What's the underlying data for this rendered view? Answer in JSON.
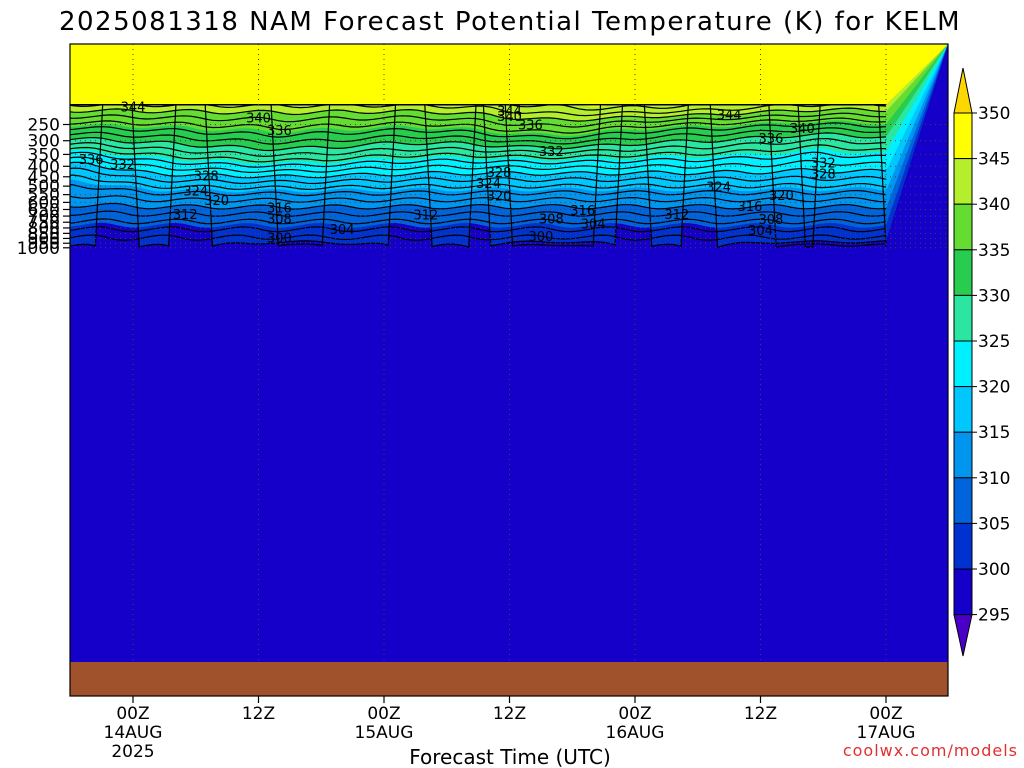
{
  "chart_data": {
    "type": "contour",
    "title": "2025081318 NAM Forecast Potential Temperature (K) for KELM",
    "xlabel": "Forecast Time (UTC)",
    "ylabel": "",
    "credit": "coolwx.com/models",
    "y_axis": {
      "ticks": [
        250,
        300,
        350,
        400,
        450,
        500,
        550,
        600,
        650,
        700,
        750,
        800,
        850,
        900,
        950,
        1000
      ],
      "range": [
        200,
        1025
      ],
      "scale": "log-pressure",
      "inverted": true
    },
    "x_axis": {
      "range_hours": [
        -6,
        78
      ],
      "ticks": [
        {
          "hour": 6,
          "line1": "00Z",
          "line2": "14AUG",
          "line3": "2025"
        },
        {
          "hour": 18,
          "line1": "12Z",
          "line2": "",
          "line3": ""
        },
        {
          "hour": 30,
          "line1": "00Z",
          "line2": "15AUG",
          "line3": ""
        },
        {
          "hour": 42,
          "line1": "12Z",
          "line2": "",
          "line3": ""
        },
        {
          "hour": 54,
          "line1": "00Z",
          "line2": "16AUG",
          "line3": ""
        },
        {
          "hour": 66,
          "line1": "12Z",
          "line2": "",
          "line3": ""
        },
        {
          "hour": 78,
          "line1": "00Z",
          "line2": "17AUG",
          "line3": ""
        }
      ]
    },
    "colorbar": {
      "levels": [
        350,
        345,
        340,
        335,
        330,
        325,
        320,
        315,
        310,
        305,
        300,
        295
      ],
      "colors": [
        "#ffd700",
        "#ffff00",
        "#b4ee2c",
        "#64dc32",
        "#28cd50",
        "#2ae6a0",
        "#00f0ff",
        "#00c8ff",
        "#0096f0",
        "#0064dc",
        "#0032d2",
        "#1400c8",
        "#4b00c8"
      ]
    },
    "surface_color": "#a0522d",
    "isentropes": [
      {
        "theta": 344,
        "labels": [
          {
            "hour": 6,
            "p": 205
          },
          {
            "hour": 42,
            "p": 215
          },
          {
            "hour": 63,
            "p": 225
          }
        ]
      },
      {
        "theta": 340,
        "labels": [
          {
            "hour": 18,
            "p": 232
          },
          {
            "hour": 42,
            "p": 228
          },
          {
            "hour": 70,
            "p": 262
          }
        ]
      },
      {
        "theta": 336,
        "labels": [
          {
            "hour": 2,
            "p": 370
          },
          {
            "hour": 20,
            "p": 268
          },
          {
            "hour": 44,
            "p": 252
          },
          {
            "hour": 67,
            "p": 292
          }
        ]
      },
      {
        "theta": 332,
        "labels": [
          {
            "hour": 5,
            "p": 393
          },
          {
            "hour": 46,
            "p": 338
          },
          {
            "hour": 72,
            "p": 385
          }
        ]
      },
      {
        "theta": 328,
        "labels": [
          {
            "hour": 13,
            "p": 447
          },
          {
            "hour": 41,
            "p": 428
          },
          {
            "hour": 72,
            "p": 436
          }
        ]
      },
      {
        "theta": 324,
        "labels": [
          {
            "hour": 12,
            "p": 528
          },
          {
            "hour": 40,
            "p": 486
          },
          {
            "hour": 62,
            "p": 505
          }
        ]
      },
      {
        "theta": 320,
        "labels": [
          {
            "hour": 14,
            "p": 587
          },
          {
            "hour": 41,
            "p": 560
          },
          {
            "hour": 68,
            "p": 556
          }
        ]
      },
      {
        "theta": 316,
        "labels": [
          {
            "hour": 20,
            "p": 640
          },
          {
            "hour": 49,
            "p": 658
          },
          {
            "hour": 65,
            "p": 629
          }
        ]
      },
      {
        "theta": 312,
        "labels": [
          {
            "hour": 11,
            "p": 688
          },
          {
            "hour": 34,
            "p": 690
          },
          {
            "hour": 58,
            "p": 687
          }
        ]
      },
      {
        "theta": 308,
        "labels": [
          {
            "hour": 20,
            "p": 725
          },
          {
            "hour": 46,
            "p": 723
          },
          {
            "hour": 67,
            "p": 726
          }
        ]
      },
      {
        "theta": 304,
        "labels": [
          {
            "hour": 26,
            "p": 816
          },
          {
            "hour": 50,
            "p": 765
          },
          {
            "hour": 66,
            "p": 822
          }
        ]
      },
      {
        "theta": 300,
        "labels": [
          {
            "hour": 20,
            "p": 895
          },
          {
            "hour": 45,
            "p": 880
          }
        ]
      }
    ]
  }
}
